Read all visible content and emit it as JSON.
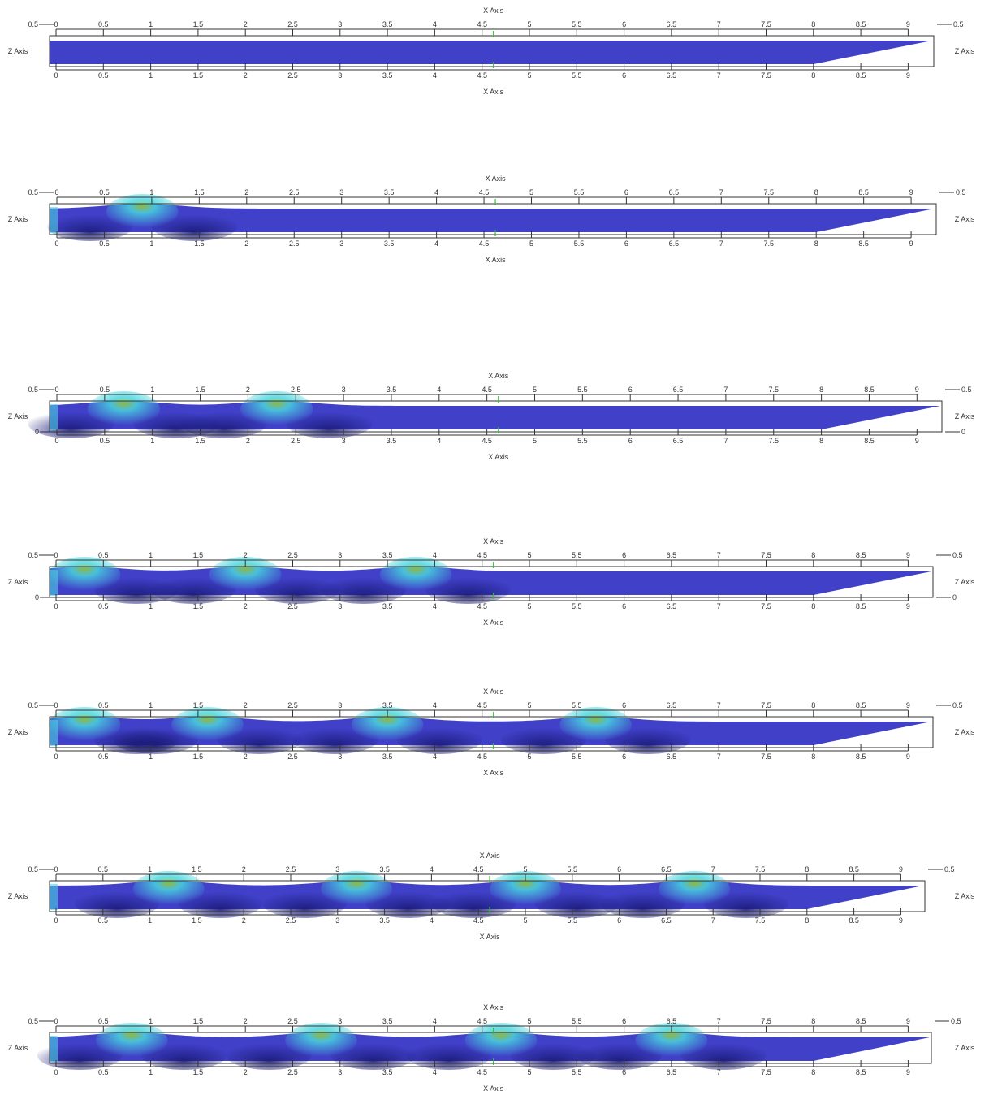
{
  "chart_data": [
    {
      "type": "heatmap",
      "xlabel": "X Axis",
      "zlabel": "Z Axis",
      "x_ticks": [
        "0",
        "0.5",
        "1",
        "1.5",
        "2",
        "2.5",
        "3",
        "3.5",
        "4",
        "4.5",
        "5",
        "5.5",
        "6",
        "6.5",
        "7",
        "7.5",
        "8",
        "8.5",
        "9"
      ],
      "z_tick_top_left": "0.5",
      "z_tick_top_right": "0.5",
      "z_tick_bottom_left": "",
      "z_tick_bottom_right": "",
      "xlim": [
        0,
        9.3
      ],
      "wave_crests_x": []
    },
    {
      "type": "heatmap",
      "xlabel": "X Axis",
      "zlabel": "Z Axis",
      "x_ticks": [
        "0",
        "0.5",
        "1",
        "1.5",
        "2",
        "2.5",
        "3",
        "3.5",
        "4",
        "4.5",
        "5",
        "5.5",
        "6",
        "6.5",
        "7",
        "7.5",
        "8",
        "8.5",
        "9"
      ],
      "z_tick_top_left": "0.5",
      "z_tick_top_right": "0.5",
      "z_tick_bottom_left": "",
      "z_tick_bottom_right": "",
      "xlim": [
        0,
        9.3
      ],
      "wave_crests_x": [
        0.9
      ]
    },
    {
      "type": "heatmap",
      "xlabel": "X Axis",
      "zlabel": "Z Axis",
      "x_ticks": [
        "0",
        "0.5",
        "1",
        "1.5",
        "2",
        "2.5",
        "3",
        "3.5",
        "4",
        "4.5",
        "5",
        "5.5",
        "6",
        "6.5",
        "7",
        "7.5",
        "8",
        "8.5",
        "9"
      ],
      "z_tick_top_left": "0.5",
      "z_tick_top_right": "0.5",
      "z_tick_bottom_left": "0",
      "z_tick_bottom_right": "0",
      "xlim": [
        0,
        9.3
      ],
      "wave_crests_x": [
        0.7,
        2.3
      ]
    },
    {
      "type": "heatmap",
      "xlabel": "X Axis",
      "zlabel": "Z Axis",
      "x_ticks": [
        "0",
        "0.5",
        "1",
        "1.5",
        "2",
        "2.5",
        "3",
        "3.5",
        "4",
        "4.5",
        "5",
        "5.5",
        "6",
        "6.5",
        "7",
        "7.5",
        "8",
        "8.5",
        "9"
      ],
      "z_tick_top_left": "0.5",
      "z_tick_top_right": "0.5",
      "z_tick_bottom_left": "0",
      "z_tick_bottom_right": "0",
      "xlim": [
        0,
        9.3
      ],
      "wave_crests_x": [
        0.3,
        2.0,
        3.8
      ]
    },
    {
      "type": "heatmap",
      "xlabel": "X Axis",
      "zlabel": "Z Axis",
      "x_ticks": [
        "0",
        "0.5",
        "1",
        "1.5",
        "2",
        "2.5",
        "3",
        "3.5",
        "4",
        "4.5",
        "5",
        "5.5",
        "6",
        "6.5",
        "7",
        "7.5",
        "8",
        "8.5",
        "9"
      ],
      "z_tick_top_left": "0.5",
      "z_tick_top_right": "0.5",
      "z_tick_bottom_left": "",
      "z_tick_bottom_right": "",
      "xlim": [
        0,
        9.3
      ],
      "wave_crests_x": [
        0.3,
        1.6,
        3.5,
        5.7
      ]
    },
    {
      "type": "heatmap",
      "xlabel": "X Axis",
      "zlabel": "Z Axis",
      "x_ticks": [
        "0",
        "0.5",
        "1",
        "1.5",
        "2",
        "2.5",
        "3",
        "3.5",
        "4",
        "4.5",
        "5",
        "5.5",
        "6",
        "6.5",
        "7",
        "7.5",
        "8",
        "8.5",
        "9"
      ],
      "z_tick_top_left": "0.5",
      "z_tick_top_right": "0.5",
      "z_tick_bottom_left": "",
      "z_tick_bottom_right": "",
      "xlim": [
        0,
        9.3
      ],
      "wave_crests_x": [
        1.2,
        3.2,
        5.0,
        6.8
      ]
    },
    {
      "type": "heatmap",
      "xlabel": "X Axis",
      "zlabel": "Z Axis",
      "x_ticks": [
        "0",
        "0.5",
        "1",
        "1.5",
        "2",
        "2.5",
        "3",
        "3.5",
        "4",
        "4.5",
        "5",
        "5.5",
        "6",
        "6.5",
        "7",
        "7.5",
        "8",
        "8.5",
        "9"
      ],
      "z_tick_top_left": "0.5",
      "z_tick_top_right": "0.5",
      "z_tick_bottom_left": "",
      "z_tick_bottom_right": "",
      "xlim": [
        0,
        9.3
      ],
      "wave_crests_x": [
        0.8,
        2.8,
        4.7,
        6.5
      ]
    }
  ],
  "colors": {
    "field": "#4040c8",
    "trough": "#1a1a78",
    "foam": "#49d6e0",
    "crest": "#9acd32",
    "frame": "#333333",
    "green_marker": "#2fbf2f"
  }
}
